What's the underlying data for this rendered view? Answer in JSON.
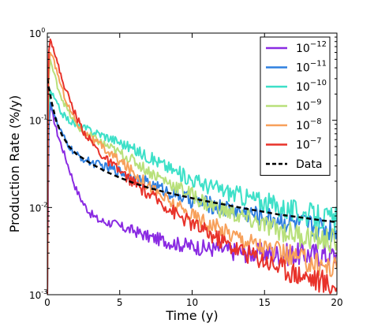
{
  "chart_data": {
    "type": "line",
    "title": "",
    "xlabel": "Time (y)",
    "ylabel": "Production Rate (%/y)",
    "xlim": [
      0,
      20
    ],
    "ylim": [
      0.001,
      1
    ],
    "yscale": "log",
    "grid": false,
    "legend_position": "top-right",
    "x_ticks": [
      0,
      5,
      10,
      15,
      20
    ],
    "y_ticks": [
      {
        "value": 0.001,
        "base": "10",
        "exp": "-3"
      },
      {
        "value": 0.01,
        "base": "10",
        "exp": "-2"
      },
      {
        "value": 0.1,
        "base": "10",
        "exp": "-1"
      },
      {
        "value": 1,
        "base": "10",
        "exp": "0"
      }
    ],
    "series": [
      {
        "name_base": "10",
        "name_exp": "−12",
        "color": "#8a2be2",
        "style": "solid",
        "points": [
          [
            0,
            0.001
          ],
          [
            0.05,
            0.012
          ],
          [
            0.1,
            0.08
          ],
          [
            0.2,
            0.15
          ],
          [
            0.4,
            0.11
          ],
          [
            0.7,
            0.07
          ],
          [
            1,
            0.05
          ],
          [
            1.5,
            0.028
          ],
          [
            2,
            0.016
          ],
          [
            2.5,
            0.011
          ],
          [
            3,
            0.0085
          ],
          [
            3.5,
            0.0072
          ],
          [
            4,
            0.0068
          ],
          [
            4.5,
            0.0066
          ],
          [
            5,
            0.006
          ],
          [
            6,
            0.0054
          ],
          [
            7,
            0.0046
          ],
          [
            8,
            0.0042
          ],
          [
            9,
            0.0038
          ],
          [
            10,
            0.0036
          ],
          [
            11,
            0.0034
          ],
          [
            12,
            0.0033
          ],
          [
            13,
            0.0031
          ],
          [
            14,
            0.003
          ],
          [
            15,
            0.003
          ],
          [
            16,
            0.0029
          ],
          [
            17,
            0.0029
          ],
          [
            18,
            0.0029
          ],
          [
            19,
            0.0029
          ],
          [
            20,
            0.0028
          ]
        ]
      },
      {
        "name_base": "10",
        "name_exp": "−11",
        "color": "#2f80e0",
        "style": "solid",
        "points": [
          [
            0,
            0.001
          ],
          [
            0.05,
            0.02
          ],
          [
            0.1,
            0.1
          ],
          [
            0.2,
            0.16
          ],
          [
            0.4,
            0.13
          ],
          [
            0.7,
            0.09
          ],
          [
            1,
            0.07
          ],
          [
            1.5,
            0.05
          ],
          [
            2,
            0.04
          ],
          [
            2.5,
            0.036
          ],
          [
            3,
            0.033
          ],
          [
            4,
            0.029
          ],
          [
            5,
            0.026
          ],
          [
            6,
            0.022
          ],
          [
            7,
            0.019
          ],
          [
            8,
            0.016
          ],
          [
            9,
            0.014
          ],
          [
            10,
            0.012
          ],
          [
            11,
            0.011
          ],
          [
            12,
            0.01
          ],
          [
            13,
            0.0092
          ],
          [
            14,
            0.0085
          ],
          [
            15,
            0.0078
          ],
          [
            16,
            0.0072
          ],
          [
            17,
            0.0066
          ],
          [
            18,
            0.0062
          ],
          [
            19,
            0.0058
          ],
          [
            20,
            0.0055
          ]
        ]
      },
      {
        "name_base": "10",
        "name_exp": "−10",
        "color": "#3de0c8",
        "style": "solid",
        "points": [
          [
            0,
            0.001
          ],
          [
            0.05,
            0.05
          ],
          [
            0.1,
            0.15
          ],
          [
            0.2,
            0.22
          ],
          [
            0.4,
            0.19
          ],
          [
            0.7,
            0.15
          ],
          [
            1,
            0.12
          ],
          [
            1.5,
            0.1
          ],
          [
            2,
            0.088
          ],
          [
            2.5,
            0.082
          ],
          [
            3,
            0.076
          ],
          [
            3.5,
            0.071
          ],
          [
            4,
            0.066
          ],
          [
            5,
            0.056
          ],
          [
            6,
            0.046
          ],
          [
            7,
            0.038
          ],
          [
            8,
            0.031
          ],
          [
            9,
            0.025
          ],
          [
            10,
            0.021
          ],
          [
            11,
            0.018
          ],
          [
            12,
            0.016
          ],
          [
            13,
            0.0143
          ],
          [
            14,
            0.0128
          ],
          [
            15,
            0.0115
          ],
          [
            16,
            0.0102
          ],
          [
            17,
            0.0092
          ],
          [
            18,
            0.0083
          ],
          [
            19,
            0.0076
          ],
          [
            20,
            0.0071
          ]
        ]
      },
      {
        "name_base": "10",
        "name_exp": "−9",
        "color": "#b8e07a",
        "style": "solid",
        "points": [
          [
            0,
            0.001
          ],
          [
            0.05,
            0.08
          ],
          [
            0.1,
            0.3
          ],
          [
            0.2,
            0.5
          ],
          [
            0.4,
            0.37
          ],
          [
            0.7,
            0.25
          ],
          [
            1,
            0.18
          ],
          [
            1.5,
            0.12
          ],
          [
            2,
            0.088
          ],
          [
            2.5,
            0.074
          ],
          [
            3,
            0.065
          ],
          [
            4,
            0.052
          ],
          [
            5,
            0.042
          ],
          [
            6,
            0.034
          ],
          [
            7,
            0.026
          ],
          [
            8,
            0.021
          ],
          [
            9,
            0.017
          ],
          [
            10,
            0.014
          ],
          [
            11,
            0.011
          ],
          [
            12,
            0.0095
          ],
          [
            13,
            0.0082
          ],
          [
            14,
            0.0072
          ],
          [
            15,
            0.0062
          ],
          [
            16,
            0.0055
          ],
          [
            17,
            0.005
          ],
          [
            18,
            0.0046
          ],
          [
            19,
            0.0043
          ],
          [
            20,
            0.004
          ]
        ]
      },
      {
        "name_base": "10",
        "name_exp": "−8",
        "color": "#f7a05a",
        "style": "solid",
        "points": [
          [
            0,
            0.001
          ],
          [
            0.05,
            0.12
          ],
          [
            0.1,
            0.4
          ],
          [
            0.2,
            0.6
          ],
          [
            0.4,
            0.5
          ],
          [
            0.7,
            0.35
          ],
          [
            1,
            0.23
          ],
          [
            1.5,
            0.14
          ],
          [
            2,
            0.095
          ],
          [
            2.5,
            0.075
          ],
          [
            3,
            0.062
          ],
          [
            4,
            0.046
          ],
          [
            5,
            0.034
          ],
          [
            6,
            0.025
          ],
          [
            7,
            0.018
          ],
          [
            8,
            0.013
          ],
          [
            9,
            0.01
          ],
          [
            10,
            0.0082
          ],
          [
            11,
            0.0068
          ],
          [
            12,
            0.0056
          ],
          [
            13,
            0.0048
          ],
          [
            14,
            0.0041
          ],
          [
            15,
            0.0035
          ],
          [
            16,
            0.003
          ],
          [
            17,
            0.0027
          ],
          [
            18,
            0.0024
          ],
          [
            19,
            0.0022
          ],
          [
            20,
            0.002
          ]
        ]
      },
      {
        "name_base": "10",
        "name_exp": "−7",
        "color": "#e8322a",
        "style": "solid",
        "points": [
          [
            0,
            0.001
          ],
          [
            0.05,
            0.2
          ],
          [
            0.1,
            0.6
          ],
          [
            0.2,
            0.85
          ],
          [
            0.4,
            0.7
          ],
          [
            0.7,
            0.45
          ],
          [
            1,
            0.3
          ],
          [
            1.5,
            0.18
          ],
          [
            2,
            0.11
          ],
          [
            2.5,
            0.075
          ],
          [
            3,
            0.058
          ],
          [
            3.5,
            0.045
          ],
          [
            4,
            0.036
          ],
          [
            5,
            0.026
          ],
          [
            6,
            0.019
          ],
          [
            7,
            0.014
          ],
          [
            8,
            0.011
          ],
          [
            9,
            0.0082
          ],
          [
            10,
            0.0065
          ],
          [
            11,
            0.0052
          ],
          [
            12,
            0.0042
          ],
          [
            13,
            0.0034
          ],
          [
            14,
            0.0029
          ],
          [
            15,
            0.0025
          ],
          [
            16,
            0.0021
          ],
          [
            17,
            0.0018
          ],
          [
            18,
            0.0016
          ],
          [
            19,
            0.0014
          ],
          [
            20,
            0.0012
          ]
        ]
      },
      {
        "name": "Data",
        "color": "#000000",
        "style": "dashed",
        "points": [
          [
            0,
            0.3
          ],
          [
            0.1,
            0.24
          ],
          [
            0.3,
            0.16
          ],
          [
            0.6,
            0.1
          ],
          [
            1,
            0.068
          ],
          [
            1.5,
            0.05
          ],
          [
            2,
            0.041
          ],
          [
            3,
            0.032
          ],
          [
            4,
            0.026
          ],
          [
            5,
            0.022
          ],
          [
            6,
            0.019
          ],
          [
            7,
            0.0168
          ],
          [
            8,
            0.0152
          ],
          [
            9,
            0.0139
          ],
          [
            10,
            0.0128
          ],
          [
            11,
            0.0118
          ],
          [
            12,
            0.011
          ],
          [
            13,
            0.0102
          ],
          [
            14,
            0.0095
          ],
          [
            15,
            0.0089
          ],
          [
            16,
            0.0083
          ],
          [
            17,
            0.0079
          ],
          [
            18,
            0.0075
          ],
          [
            19,
            0.0071
          ],
          [
            20,
            0.0068
          ]
        ]
      }
    ]
  }
}
